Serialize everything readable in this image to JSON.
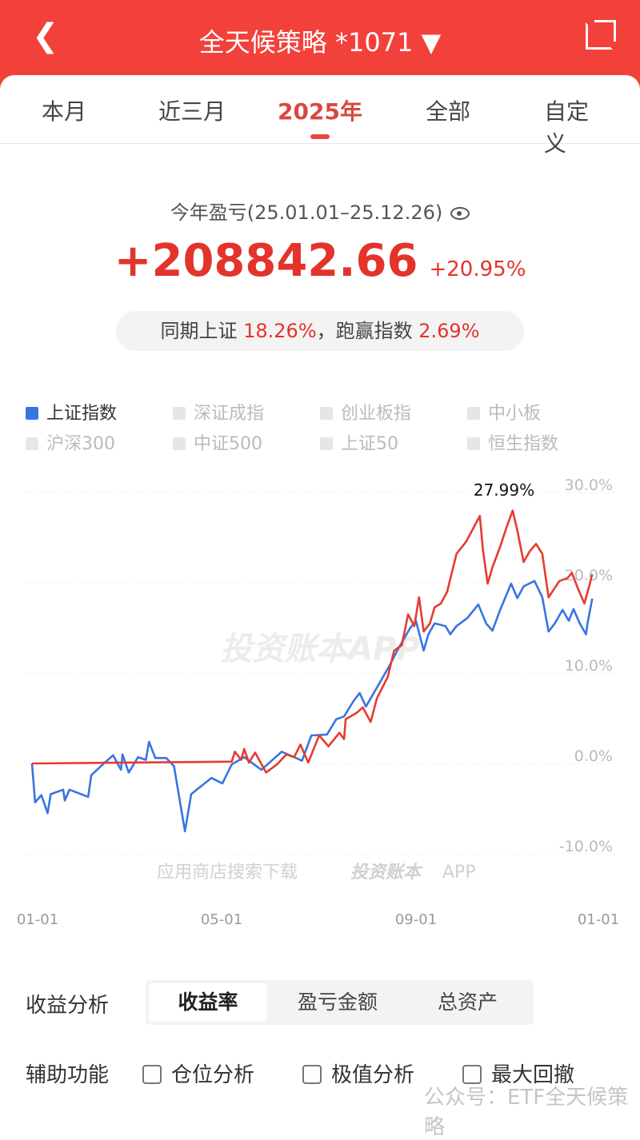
{
  "header": {
    "back_icon": "chevron-left-icon",
    "title": "全天候策略 *1071 ▼",
    "share_icon": "share-icon"
  },
  "tabs": [
    {
      "label": "本月"
    },
    {
      "label": "近三月"
    },
    {
      "label": "2025年",
      "active": true
    },
    {
      "label": "全部"
    },
    {
      "label": "自定义"
    }
  ],
  "summary": {
    "period": "今年盈亏(25.01.01–25.12.26)",
    "profit": "+208842.66",
    "profit_pct": "+20.95%",
    "compare_label": "同期上证",
    "compare_value": "18.26%",
    "beat_label": "，跑赢指数",
    "beat_value": "2.69%",
    "colors": {
      "profit": "#e3342b"
    }
  },
  "legend": [
    {
      "label": "上证指数",
      "on": true
    },
    {
      "label": "深证成指"
    },
    {
      "label": "创业板指"
    },
    {
      "label": "中小板"
    },
    {
      "label": "沪深300"
    },
    {
      "label": "中证500"
    },
    {
      "label": "上证50"
    },
    {
      "label": "恒生指数"
    }
  ],
  "chart_data": {
    "type": "line",
    "x_ticks": [
      "01-01",
      "05-01",
      "09-01",
      "01-01"
    ],
    "y_ticks": [
      "30.0%",
      "20.0%",
      "10.0%",
      "0.0%",
      "-10.0%"
    ],
    "ylim": [
      -10,
      30
    ],
    "xlim": [
      "2025-01-01",
      "2026-01-01"
    ],
    "grid": true,
    "annotation": "27.99%",
    "watermark": "投资账本APP",
    "watermark_bottom": "应用商店搜索下载",
    "watermark_bottom_brand": "投资账本",
    "watermark_bottom_app": "APP",
    "series": [
      {
        "color": "#e63b30",
        "points": [
          [
            "2025-01-01",
            0
          ],
          [
            "2025-05-09",
            0.2
          ],
          [
            "2025-05-11",
            1.3
          ],
          [
            "2025-05-15",
            0.4
          ],
          [
            "2025-05-17",
            1.6
          ],
          [
            "2025-05-20",
            0.1
          ],
          [
            "2025-05-24",
            1.2
          ],
          [
            "2025-05-31",
            -1.0
          ],
          [
            "2025-06-07",
            -0.1
          ],
          [
            "2025-06-13",
            1.0
          ],
          [
            "2025-06-18",
            0.7
          ],
          [
            "2025-06-22",
            2.1
          ],
          [
            "2025-06-27",
            0.1
          ],
          [
            "2025-07-04",
            3.1
          ],
          [
            "2025-07-10",
            1.9
          ],
          [
            "2025-07-17",
            3.4
          ],
          [
            "2025-07-20",
            2.7
          ],
          [
            "2025-07-21",
            4.9
          ],
          [
            "2025-07-28",
            5.6
          ],
          [
            "2025-08-01",
            6.2
          ],
          [
            "2025-08-06",
            4.6
          ],
          [
            "2025-08-10",
            7.2
          ],
          [
            "2025-08-17",
            9.6
          ],
          [
            "2025-08-21",
            12.5
          ],
          [
            "2025-08-26",
            13.1
          ],
          [
            "2025-08-30",
            16.5
          ],
          [
            "2025-09-03",
            15.2
          ],
          [
            "2025-09-06",
            18.4
          ],
          [
            "2025-09-09",
            14.6
          ],
          [
            "2025-09-13",
            15.5
          ],
          [
            "2025-09-16",
            17.3
          ],
          [
            "2025-09-20",
            17.7
          ],
          [
            "2025-09-24",
            19.0
          ],
          [
            "2025-09-30",
            23.2
          ],
          [
            "2025-10-06",
            24.5
          ],
          [
            "2025-10-15",
            27.4
          ],
          [
            "2025-10-17",
            23.6
          ],
          [
            "2025-10-20",
            19.9
          ],
          [
            "2025-10-23",
            21.7
          ],
          [
            "2025-10-28",
            24.0
          ],
          [
            "2025-11-01",
            26.1
          ],
          [
            "2025-11-05",
            27.99
          ],
          [
            "2025-11-08",
            25.8
          ],
          [
            "2025-11-12",
            22.3
          ],
          [
            "2025-11-16",
            23.5
          ],
          [
            "2025-11-20",
            24.3
          ],
          [
            "2025-11-24",
            23.2
          ],
          [
            "2025-11-28",
            18.4
          ],
          [
            "2025-12-05",
            20.2
          ],
          [
            "2025-12-10",
            20.5
          ],
          [
            "2025-12-13",
            21.1
          ],
          [
            "2025-12-17",
            19.3
          ],
          [
            "2025-12-21",
            17.7
          ],
          [
            "2025-12-24",
            19.6
          ],
          [
            "2025-12-26",
            20.95
          ]
        ]
      },
      {
        "name": "上证指数",
        "color": "#3a74e0",
        "points": [
          [
            "2025-01-01",
            0
          ],
          [
            "2025-01-03",
            -4.3
          ],
          [
            "2025-01-07",
            -3.5
          ],
          [
            "2025-01-11",
            -5.5
          ],
          [
            "2025-01-13",
            -3.4
          ],
          [
            "2025-01-21",
            -2.9
          ],
          [
            "2025-01-22",
            -4.1
          ],
          [
            "2025-01-25",
            -2.9
          ],
          [
            "2025-02-06",
            -3.7
          ],
          [
            "2025-02-08",
            -1.3
          ],
          [
            "2025-02-16",
            0
          ],
          [
            "2025-02-22",
            0.9
          ],
          [
            "2025-02-27",
            -0.7
          ],
          [
            "2025-02-28",
            1.0
          ],
          [
            "2025-03-04",
            -1.0
          ],
          [
            "2025-03-10",
            0.7
          ],
          [
            "2025-03-15",
            0.4
          ],
          [
            "2025-03-17",
            2.4
          ],
          [
            "2025-03-21",
            0.6
          ],
          [
            "2025-03-28",
            0.6
          ],
          [
            "2025-04-02",
            -0.3
          ],
          [
            "2025-04-09",
            -7.5
          ],
          [
            "2025-04-13",
            -3.4
          ],
          [
            "2025-04-26",
            -1.6
          ],
          [
            "2025-05-03",
            -2.2
          ],
          [
            "2025-05-09",
            -0.1
          ],
          [
            "2025-05-17",
            0.7
          ],
          [
            "2025-05-28",
            -0.7
          ],
          [
            "2025-06-10",
            1.3
          ],
          [
            "2025-06-18",
            0.7
          ],
          [
            "2025-06-23",
            0.3
          ],
          [
            "2025-06-29",
            3.1
          ],
          [
            "2025-07-09",
            3.2
          ],
          [
            "2025-07-15",
            4.9
          ],
          [
            "2025-07-20",
            5.2
          ],
          [
            "2025-07-26",
            6.9
          ],
          [
            "2025-07-30",
            7.8
          ],
          [
            "2025-08-03",
            6.3
          ],
          [
            "2025-08-11",
            8.7
          ],
          [
            "2025-08-18",
            10.8
          ],
          [
            "2025-08-24",
            12.8
          ],
          [
            "2025-08-31",
            14.9
          ],
          [
            "2025-09-04",
            15.8
          ],
          [
            "2025-09-09",
            12.5
          ],
          [
            "2025-09-12",
            14.3
          ],
          [
            "2025-09-16",
            15.5
          ],
          [
            "2025-09-23",
            15.2
          ],
          [
            "2025-09-26",
            14.3
          ],
          [
            "2025-09-30",
            15.2
          ],
          [
            "2025-10-07",
            16.1
          ],
          [
            "2025-10-14",
            17.6
          ],
          [
            "2025-10-19",
            15.5
          ],
          [
            "2025-10-23",
            14.7
          ],
          [
            "2025-10-28",
            17.0
          ],
          [
            "2025-11-04",
            19.9
          ],
          [
            "2025-11-08",
            18.3
          ],
          [
            "2025-11-12",
            19.6
          ],
          [
            "2025-11-19",
            20.2
          ],
          [
            "2025-11-24",
            18.4
          ],
          [
            "2025-11-28",
            14.6
          ],
          [
            "2025-12-02",
            15.5
          ],
          [
            "2025-12-07",
            17.0
          ],
          [
            "2025-12-11",
            15.8
          ],
          [
            "2025-12-14",
            17.1
          ],
          [
            "2025-12-18",
            15.5
          ],
          [
            "2025-12-22",
            14.3
          ],
          [
            "2025-12-23",
            15.5
          ],
          [
            "2025-12-26",
            18.26
          ]
        ]
      }
    ]
  },
  "analysis": {
    "label": "收益分析",
    "options": [
      {
        "label": "收益率",
        "on": true
      },
      {
        "label": "盈亏金额"
      },
      {
        "label": "总资产"
      }
    ]
  },
  "aux": {
    "label": "辅助功能",
    "options": [
      {
        "label": "仓位分析"
      },
      {
        "label": "极值分析"
      },
      {
        "label": "最大回撤"
      }
    ]
  },
  "overlay_watermark": "公众号：ETF全天候策略"
}
